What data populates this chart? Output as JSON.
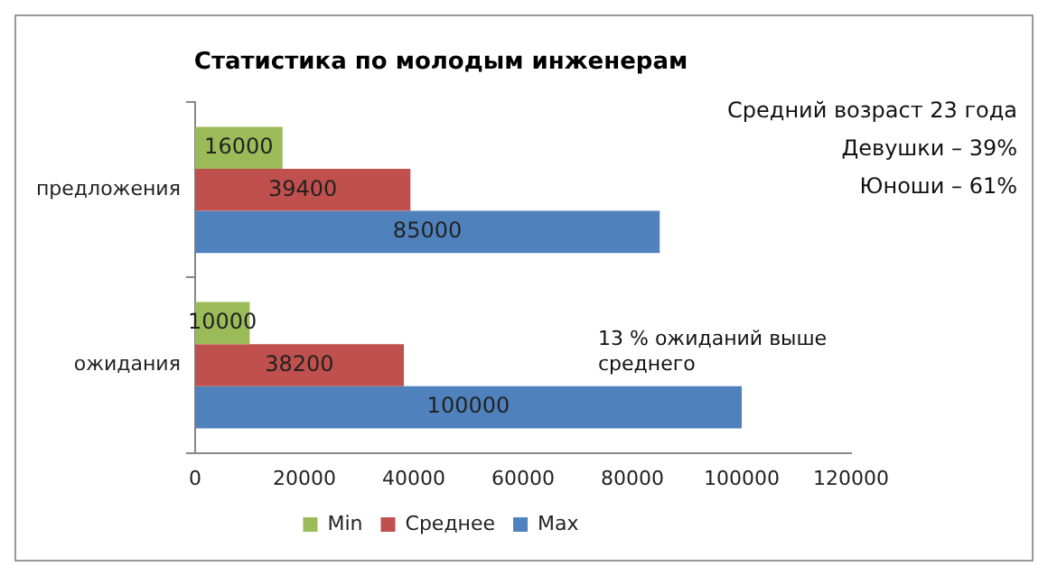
{
  "chart_data": {
    "type": "bar",
    "orientation": "horizontal",
    "title": "Статистика по молодым инженерам",
    "categories": [
      "предложения",
      "ожидания"
    ],
    "series": [
      {
        "name": "Min",
        "color": "#9bbb59",
        "values": [
          16000,
          10000
        ]
      },
      {
        "name": "Среднее",
        "color": "#c0504d",
        "values": [
          39400,
          38200
        ]
      },
      {
        "name": "Max",
        "color": "#4f81bd",
        "values": [
          85000,
          100000
        ]
      }
    ],
    "xlim": [
      0,
      120000
    ],
    "xticks": [
      0,
      20000,
      40000,
      60000,
      80000,
      100000,
      120000
    ],
    "data_labels": true,
    "legend": "bottom",
    "grid": false,
    "annotations": [
      "Средний возраст 23 года",
      "Девушки – 39%",
      "Юноши – 61%",
      "13 % ожиданий выше среднего"
    ]
  }
}
